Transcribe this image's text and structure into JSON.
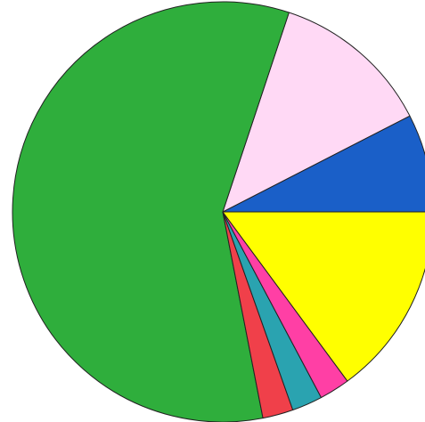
{
  "chart_data": {
    "type": "pie",
    "title": "",
    "legend": "none",
    "start_angle_deg": 0,
    "direction": "counterclockwise",
    "slices": [
      {
        "value": 7.4,
        "color": "#1a5fc8"
      },
      {
        "value": 12.1,
        "color": "#ffd9f5"
      },
      {
        "value": 57.0,
        "color": "#2fae3c"
      },
      {
        "value": 2.3,
        "color": "#f0404a"
      },
      {
        "value": 2.3,
        "color": "#2aa3b0"
      },
      {
        "value": 2.3,
        "color": "#ff3fa5"
      },
      {
        "value": 14.6,
        "color": "#ffff00"
      }
    ]
  }
}
